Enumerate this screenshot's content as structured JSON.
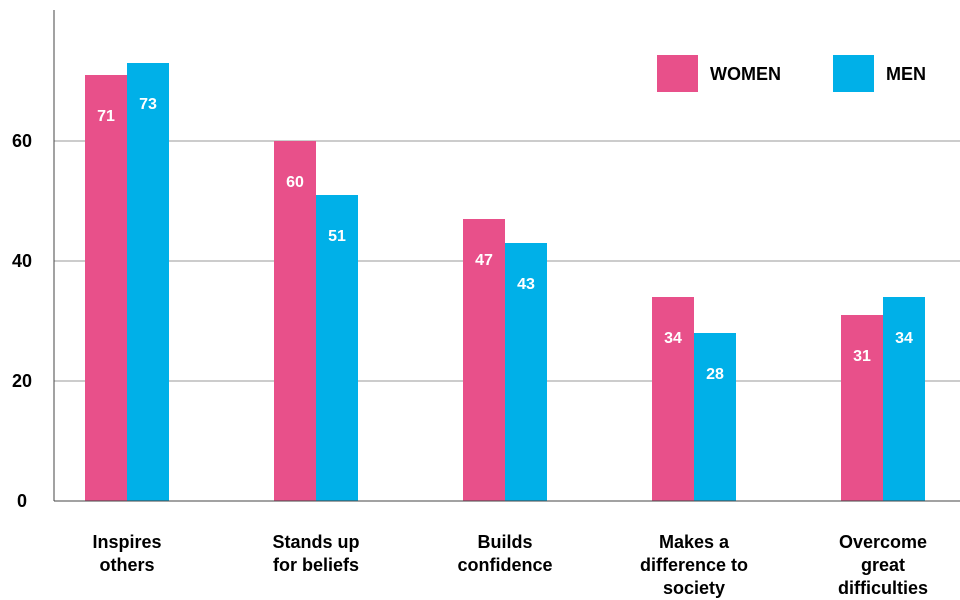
{
  "chart_data": {
    "type": "bar",
    "title": "",
    "xlabel": "",
    "ylabel": "",
    "ylim": [
      0,
      73
    ],
    "yticks": [
      0,
      20,
      40,
      60
    ],
    "grid": true,
    "legend_position": "top-right",
    "categories": [
      [
        "Inspires",
        "others"
      ],
      [
        "Stands up",
        "for beliefs"
      ],
      [
        "Builds",
        "confidence"
      ],
      [
        "Makes a",
        "difference to",
        "society"
      ],
      [
        "Overcome",
        "great",
        "difficulties"
      ]
    ],
    "series": [
      {
        "name": "WOMEN",
        "color": "#e8508a",
        "values": [
          71,
          60,
          47,
          34,
          31
        ]
      },
      {
        "name": "MEN",
        "color": "#00b0e8",
        "values": [
          73,
          51,
          43,
          28,
          34
        ]
      }
    ]
  }
}
